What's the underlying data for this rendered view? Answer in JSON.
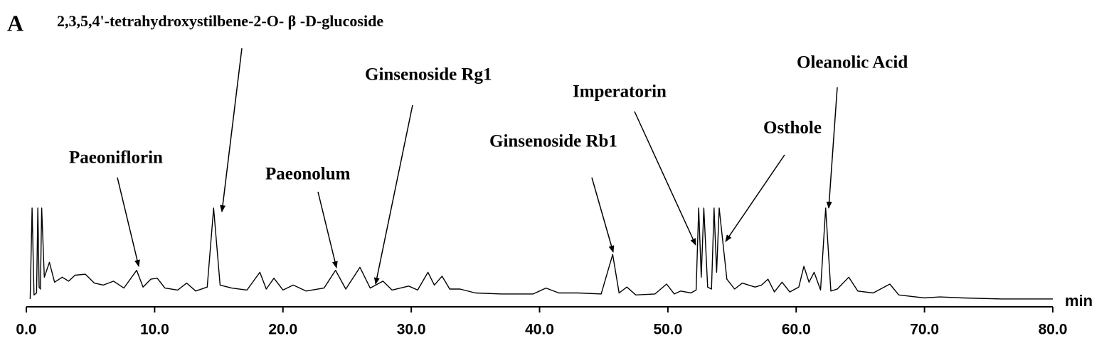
{
  "chart_data": {
    "type": "line",
    "panel_label": "A",
    "annotations": [
      "2,3,5,4'-tetrahydroxystilbene-2-O- β -D-glucoside",
      "Paeoniflorin",
      "Paeonolum",
      "Ginsenoside Rg1",
      "Ginsenoside Rb1",
      "Imperatorin",
      "Osthole",
      "Oleanolic Acid"
    ],
    "x_label": "min",
    "color": "#000000",
    "xlim": [
      0,
      80
    ],
    "ylim": [
      0,
      100
    ],
    "xticks": [
      {
        "value": 0,
        "label": "0.0"
      },
      {
        "value": 10,
        "label": "10.0"
      },
      {
        "value": 20,
        "label": "20.0"
      },
      {
        "value": 30,
        "label": "30.0"
      },
      {
        "value": 40,
        "label": "40.0"
      },
      {
        "value": 50,
        "label": "50.0"
      },
      {
        "value": 60,
        "label": "60.0"
      },
      {
        "value": 70,
        "label": "70.0"
      },
      {
        "value": 80,
        "label": "80.0"
      }
    ],
    "x": [
      0.3,
      0.45,
      0.6,
      0.8,
      0.9,
      1.0,
      1.1,
      1.2,
      1.4,
      1.8,
      2.2,
      2.8,
      3.3,
      3.8,
      4.6,
      5.3,
      6.0,
      6.8,
      7.6,
      8.6,
      9.1,
      9.7,
      10.2,
      10.8,
      11.8,
      12.5,
      13.2,
      14.1,
      14.6,
      15.1,
      16.0,
      17.2,
      18.2,
      18.7,
      19.3,
      20.0,
      20.8,
      21.8,
      23.2,
      24.1,
      24.9,
      26.0,
      26.8,
      27.8,
      28.5,
      29.8,
      30.5,
      31.3,
      31.8,
      32.4,
      33.0,
      33.8,
      35.0,
      37.0,
      39.5,
      40.5,
      41.5,
      43.0,
      44.8,
      45.7,
      46.2,
      46.8,
      47.5,
      49.0,
      49.9,
      50.5,
      51.0,
      51.8,
      52.2,
      52.4,
      52.6,
      52.8,
      53.1,
      53.4,
      53.6,
      53.8,
      54.0,
      54.6,
      55.2,
      55.8,
      56.3,
      56.8,
      57.3,
      57.8,
      58.3,
      58.9,
      59.5,
      60.2,
      60.6,
      61.0,
      61.4,
      61.9,
      62.3,
      62.7,
      63.2,
      64.1,
      64.8,
      66.0,
      67.3,
      68.0,
      70.0,
      71.2,
      73.0,
      76.0,
      80.0
    ],
    "values": [
      8,
      100,
      12,
      14,
      100,
      20,
      18,
      100,
      30,
      45,
      25,
      30,
      26,
      32,
      33,
      24,
      22,
      26,
      19,
      37,
      20,
      28,
      29,
      19,
      17,
      24,
      16,
      20,
      100,
      22,
      19,
      17,
      35,
      18,
      29,
      17,
      22,
      16,
      19,
      37,
      18,
      40,
      19,
      26,
      17,
      21,
      17,
      35,
      22,
      31,
      18,
      18,
      14,
      13,
      13,
      19,
      14,
      14,
      13,
      53,
      14,
      20,
      12,
      13,
      23,
      13,
      16,
      14,
      17,
      100,
      30,
      100,
      20,
      18,
      100,
      35,
      100,
      28,
      18,
      24,
      22,
      20,
      22,
      28,
      15,
      25,
      15,
      20,
      41,
      25,
      35,
      17,
      100,
      16,
      18,
      30,
      16,
      14,
      23,
      12,
      9,
      10,
      9,
      8,
      8
    ]
  }
}
